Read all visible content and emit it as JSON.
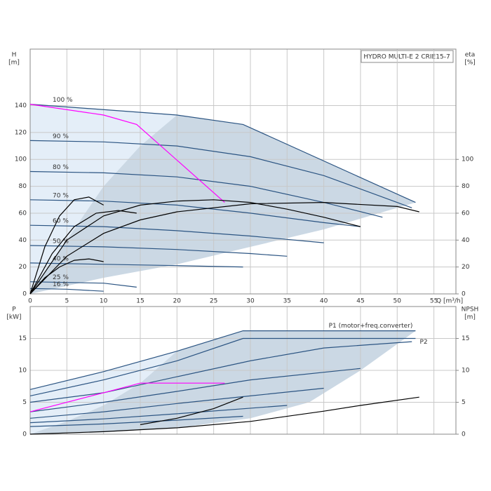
{
  "chart_data": [
    {
      "type": "line",
      "title": "HYDRO MULTI-E 2 CRIE15-7",
      "y_label": "H",
      "y_unit": "[m]",
      "y2_label": "eta",
      "y2_unit": "[%]",
      "x_label": "Q [m³/h]",
      "xlim": [
        0,
        58
      ],
      "xticks": [
        0,
        5,
        10,
        15,
        20,
        25,
        30,
        35,
        40,
        45,
        50,
        55
      ],
      "ylim": [
        0,
        182
      ],
      "yticks": [
        0,
        20,
        40,
        60,
        80,
        100,
        120,
        140
      ],
      "y2lim": [
        0,
        182
      ],
      "y2ticks": [
        0,
        20,
        40,
        60,
        80,
        100
      ],
      "grid": true,
      "series": [
        {
          "name": "100 %",
          "color": "#2b5482",
          "x": [
            0,
            20,
            29,
            52.5
          ],
          "values": [
            141,
            133,
            126,
            68
          ]
        },
        {
          "name": "90 %",
          "color": "#2b5482",
          "x": [
            0,
            10,
            20,
            30,
            40,
            52
          ],
          "values": [
            114,
            113,
            110,
            102,
            88,
            64
          ]
        },
        {
          "name": "80 %",
          "color": "#2b5482",
          "x": [
            0,
            10,
            20,
            30,
            40,
            48
          ],
          "values": [
            91,
            90,
            87,
            80,
            68,
            57
          ]
        },
        {
          "name": "70 %",
          "color": "#2b5482",
          "x": [
            0,
            10,
            20,
            30,
            40,
            45
          ],
          "values": [
            70,
            69,
            66,
            60,
            53,
            50
          ]
        },
        {
          "name": "60 %",
          "color": "#2b5482",
          "x": [
            0,
            10,
            20,
            30,
            40
          ],
          "values": [
            51,
            50,
            47,
            43,
            38
          ]
        },
        {
          "name": "50 %",
          "color": "#2b5482",
          "x": [
            0,
            10,
            20,
            30,
            35
          ],
          "values": [
            36,
            35,
            33,
            30,
            28
          ]
        },
        {
          "name": "40 %",
          "color": "#2b5482",
          "x": [
            0,
            10,
            20,
            29
          ],
          "values": [
            23,
            22,
            21,
            20
          ]
        },
        {
          "name": "25 %",
          "color": "#2b5482",
          "x": [
            0,
            10,
            14.5
          ],
          "values": [
            9,
            8,
            5
          ]
        },
        {
          "name": "16 %",
          "color": "#2b5482",
          "x": [
            0,
            5,
            10
          ],
          "values": [
            4,
            3.5,
            2
          ]
        },
        {
          "color": "#ff00ff",
          "x": [
            0,
            10,
            14.5,
            26.5
          ],
          "values": [
            141,
            133,
            126,
            68
          ]
        },
        {
          "color": "#000000",
          "axis": "y2",
          "x": [
            0,
            5,
            10,
            15,
            20,
            30,
            40,
            50,
            53
          ],
          "values": [
            0,
            28,
            45,
            55,
            61,
            67,
            68,
            65,
            61
          ]
        },
        {
          "color": "#000000",
          "axis": "y2",
          "x": [
            0,
            5,
            10,
            15,
            20,
            25,
            30,
            35,
            40,
            45
          ],
          "values": [
            0,
            40,
            58,
            66,
            69,
            70,
            68,
            63,
            57,
            50
          ]
        },
        {
          "color": "#000000",
          "axis": "y2",
          "x": [
            0,
            2,
            4,
            6,
            8,
            10
          ],
          "values": [
            0,
            35,
            58,
            70,
            72,
            66
          ]
        },
        {
          "color": "#000000",
          "axis": "y2",
          "x": [
            0,
            3,
            6,
            9,
            12,
            14.5
          ],
          "values": [
            0,
            30,
            50,
            60,
            62,
            60
          ]
        },
        {
          "color": "#000000",
          "axis": "y2",
          "x": [
            0,
            2,
            4,
            6,
            8,
            10
          ],
          "values": [
            0,
            12,
            20,
            25,
            26,
            24
          ]
        }
      ]
    },
    {
      "type": "line",
      "y_label": "P",
      "y_unit": "[kW]",
      "y2_label": "NPSH",
      "y2_unit": "[m]",
      "xlim": [
        0,
        58
      ],
      "ylim": [
        0,
        20
      ],
      "yticks": [
        0,
        5,
        10,
        15
      ],
      "y2lim": [
        0,
        20
      ],
      "y2ticks": [
        0,
        5,
        10,
        15
      ],
      "grid": true,
      "series": [
        {
          "name": "P1 (motor+freq.converter)",
          "color": "#2b5482",
          "x": [
            0,
            10,
            20,
            29,
            52.5
          ],
          "values": [
            7,
            9.8,
            13,
            16.2,
            16.2
          ]
        },
        {
          "name": "P2",
          "color": "#2b5482",
          "x": [
            0,
            10,
            20,
            29,
            52.5
          ],
          "values": [
            6,
            8.5,
            11.5,
            15,
            15
          ]
        },
        {
          "color": "#2b5482",
          "x": [
            0,
            10,
            20,
            30,
            40,
            52
          ],
          "values": [
            5,
            6.5,
            9,
            11.5,
            13.5,
            14.5
          ]
        },
        {
          "color": "#2b5482",
          "x": [
            0,
            10,
            20,
            30,
            45
          ],
          "values": [
            3.5,
            5,
            6.7,
            8.5,
            10.3
          ]
        },
        {
          "color": "#2b5482",
          "x": [
            0,
            10,
            20,
            30,
            40
          ],
          "values": [
            2.5,
            3.5,
            4.8,
            6,
            7.2
          ]
        },
        {
          "color": "#2b5482",
          "x": [
            0,
            10,
            20,
            35
          ],
          "values": [
            1.8,
            2.4,
            3.2,
            4.5
          ]
        },
        {
          "color": "#2b5482",
          "x": [
            0,
            10,
            20,
            29
          ],
          "values": [
            1.2,
            1.6,
            2.2,
            2.8
          ]
        },
        {
          "color": "#ff00ff",
          "x": [
            0,
            10,
            15,
            20,
            26.5
          ],
          "values": [
            3.5,
            6.5,
            8,
            8,
            8
          ]
        },
        {
          "color": "#000000",
          "axis": "y2",
          "x": [
            0,
            10,
            20,
            30,
            40,
            45,
            53
          ],
          "values": [
            0,
            0.4,
            1,
            2,
            3.6,
            4.5,
            5.8
          ]
        },
        {
          "color": "#000000",
          "x": [
            15,
            20,
            25,
            29
          ],
          "values": [
            1.5,
            2.5,
            4,
            5.8
          ]
        }
      ]
    }
  ]
}
